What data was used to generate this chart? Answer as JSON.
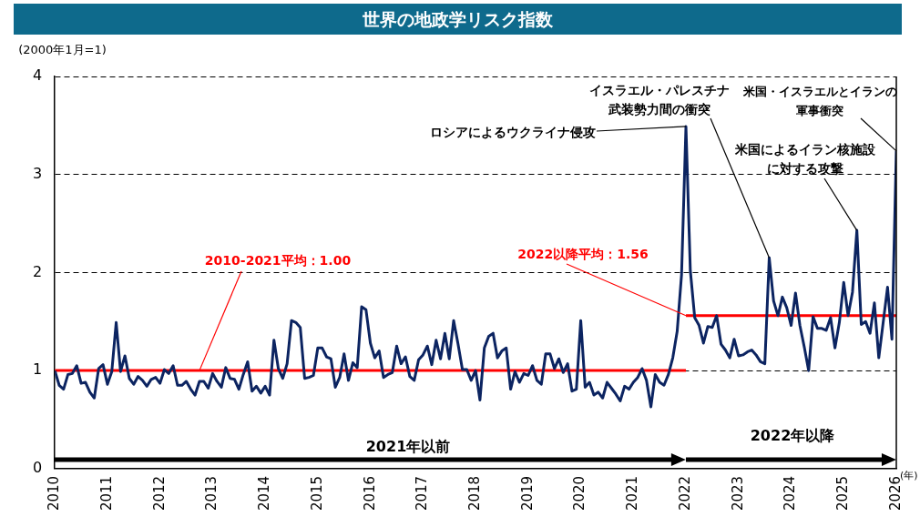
{
  "chart_data": {
    "type": "line",
    "title": "世界の地政学リスク指数",
    "ylabel": "(2000年1月=1)",
    "xlabel": "(年)",
    "xlim": [
      "2010-01",
      "2026-01"
    ],
    "xticks": [
      "2010",
      "2011",
      "2012",
      "2013",
      "2014",
      "2015",
      "2016",
      "2017",
      "2018",
      "2019",
      "2020",
      "2021",
      "2022",
      "2023",
      "2024",
      "2025",
      "2026"
    ],
    "ylim": [
      0,
      4
    ],
    "yticks": [
      0,
      1,
      2,
      3,
      4
    ],
    "grid": "y",
    "marker": "none",
    "series": [
      {
        "color": "#0c2461",
        "x": [
          "2010-01",
          "2010-02",
          "2010-03",
          "2010-04",
          "2010-05",
          "2010-06",
          "2010-07",
          "2010-08",
          "2010-09",
          "2010-10",
          "2010-11",
          "2010-12",
          "2011-01",
          "2011-02",
          "2011-03",
          "2011-04",
          "2011-05",
          "2011-06",
          "2011-07",
          "2011-08",
          "2011-09",
          "2011-10",
          "2011-11",
          "2011-12",
          "2012-01",
          "2012-02",
          "2012-03",
          "2012-04",
          "2012-05",
          "2012-06",
          "2012-07",
          "2012-08",
          "2012-09",
          "2012-10",
          "2012-11",
          "2012-12",
          "2013-01",
          "2013-02",
          "2013-03",
          "2013-04",
          "2013-05",
          "2013-06",
          "2013-07",
          "2013-08",
          "2013-09",
          "2013-10",
          "2013-11",
          "2013-12",
          "2014-01",
          "2014-02",
          "2014-03",
          "2014-04",
          "2014-05",
          "2014-06",
          "2014-07",
          "2014-08",
          "2014-09",
          "2014-10",
          "2014-11",
          "2014-12",
          "2015-01",
          "2015-02",
          "2015-03",
          "2015-04",
          "2015-05",
          "2015-06",
          "2015-07",
          "2015-08",
          "2015-09",
          "2015-10",
          "2015-11",
          "2015-12",
          "2016-01",
          "2016-02",
          "2016-03",
          "2016-04",
          "2016-05",
          "2016-06",
          "2016-07",
          "2016-08",
          "2016-09",
          "2016-10",
          "2016-11",
          "2016-12",
          "2017-01",
          "2017-02",
          "2017-03",
          "2017-04",
          "2017-05",
          "2017-06",
          "2017-07",
          "2017-08",
          "2017-09",
          "2017-10",
          "2017-11",
          "2017-12",
          "2018-01",
          "2018-02",
          "2018-03",
          "2018-04",
          "2018-05",
          "2018-06",
          "2018-07",
          "2018-08",
          "2018-09",
          "2018-10",
          "2018-11",
          "2018-12",
          "2019-01",
          "2019-02",
          "2019-03",
          "2019-04",
          "2019-05",
          "2019-06",
          "2019-07",
          "2019-08",
          "2019-09",
          "2019-10",
          "2019-11",
          "2019-12",
          "2020-01",
          "2020-02",
          "2020-03",
          "2020-04",
          "2020-05",
          "2020-06",
          "2020-07",
          "2020-08",
          "2020-09",
          "2020-10",
          "2020-11",
          "2020-12",
          "2021-01",
          "2021-02",
          "2021-03",
          "2021-04",
          "2021-05",
          "2021-06",
          "2021-07",
          "2021-08",
          "2021-09",
          "2021-10",
          "2021-11",
          "2021-12",
          "2022-01",
          "2022-02",
          "2022-03",
          "2022-04",
          "2022-05",
          "2022-06",
          "2022-07",
          "2022-08",
          "2022-09",
          "2022-10",
          "2022-11",
          "2022-12",
          "2023-01",
          "2023-02",
          "2023-03",
          "2023-04",
          "2023-05",
          "2023-06",
          "2023-07",
          "2023-08",
          "2023-09",
          "2023-10",
          "2023-11",
          "2023-12",
          "2024-01",
          "2024-02",
          "2024-03",
          "2024-04",
          "2024-05",
          "2024-06",
          "2024-07",
          "2024-08",
          "2024-09",
          "2024-10",
          "2024-11",
          "2024-12",
          "2025-01",
          "2025-02",
          "2025-03",
          "2025-04",
          "2025-05",
          "2025-06",
          "2025-07",
          "2025-08",
          "2025-09",
          "2025-10",
          "2025-11",
          "2025-12",
          "2026-01"
        ],
        "values": [
          1.0,
          0.85,
          0.81,
          0.96,
          0.97,
          1.05,
          0.87,
          0.88,
          0.78,
          0.72,
          1.02,
          1.06,
          0.86,
          0.99,
          1.49,
          0.99,
          1.15,
          0.92,
          0.86,
          0.94,
          0.9,
          0.84,
          0.91,
          0.93,
          0.87,
          1.01,
          0.97,
          1.05,
          0.85,
          0.85,
          0.89,
          0.81,
          0.75,
          0.89,
          0.89,
          0.82,
          0.97,
          0.89,
          0.83,
          1.03,
          0.92,
          0.91,
          0.81,
          0.96,
          1.09,
          0.79,
          0.84,
          0.77,
          0.84,
          0.75,
          1.31,
          1.02,
          0.92,
          1.07,
          1.51,
          1.49,
          1.44,
          0.92,
          0.93,
          0.95,
          1.23,
          1.23,
          1.14,
          1.12,
          0.83,
          0.93,
          1.17,
          0.9,
          1.08,
          1.03,
          1.65,
          1.62,
          1.28,
          1.13,
          1.2,
          0.93,
          0.96,
          0.98,
          1.25,
          1.07,
          1.14,
          0.94,
          0.9,
          1.11,
          1.16,
          1.25,
          1.06,
          1.31,
          1.12,
          1.38,
          1.12,
          1.51,
          1.27,
          1.01,
          1.01,
          0.9,
          1.0,
          0.7,
          1.23,
          1.35,
          1.38,
          1.13,
          1.2,
          1.23,
          0.81,
          0.99,
          0.88,
          0.97,
          0.95,
          1.05,
          0.9,
          0.86,
          1.17,
          1.17,
          1.02,
          1.12,
          0.98,
          1.07,
          0.79,
          0.81,
          1.51,
          0.83,
          0.88,
          0.75,
          0.78,
          0.72,
          0.88,
          0.82,
          0.76,
          0.69,
          0.84,
          0.81,
          0.88,
          0.93,
          1.02,
          0.9,
          0.63,
          0.96,
          0.88,
          0.85,
          0.96,
          1.13,
          1.4,
          1.98,
          3.49,
          2.02,
          1.54,
          1.46,
          1.28,
          1.45,
          1.44,
          1.56,
          1.27,
          1.21,
          1.13,
          1.32,
          1.15,
          1.16,
          1.19,
          1.21,
          1.16,
          1.09,
          1.07,
          2.15,
          1.71,
          1.56,
          1.75,
          1.64,
          1.46,
          1.79,
          1.46,
          1.24,
          1.0,
          1.55,
          1.43,
          1.43,
          1.41,
          1.54,
          1.23,
          1.49,
          1.9,
          1.56,
          1.8,
          2.43,
          1.47,
          1.5,
          1.38,
          1.69,
          1.13,
          1.49,
          1.85,
          1.32,
          3.24
        ]
      },
      {
        "type": "line",
        "color": "#ff0000",
        "x": [
          "2010-01",
          "2022-01"
        ],
        "values": [
          1.0,
          1.0
        ]
      },
      {
        "type": "line",
        "color": "#ff0000",
        "x": [
          "2022-01",
          "2026-01"
        ],
        "values": [
          1.56,
          1.56
        ]
      }
    ],
    "annotations": [
      {
        "text": "2010-2021平均：1.00",
        "x": "2012-10",
        "y": 1.0
      },
      {
        "text": "2022以降平均：1.56",
        "x": "2022-01",
        "y": 1.56
      },
      {
        "text": "ロシアによるウクライナ侵攻",
        "x": "2022-01",
        "y": 3.49
      },
      {
        "text": "イスラエル・パレスチナ武装勢力間の衝突",
        "x": "2023-08",
        "y": 2.15
      },
      {
        "text": "米国によるイラン核施設に対する攻撃",
        "x": "2025-04",
        "y": 2.43
      },
      {
        "text": "米国・イスラエルとイランの軍事衝突",
        "x": "2026-01",
        "y": 3.24
      },
      "2021年以前",
      "2022年以降"
    ]
  }
}
